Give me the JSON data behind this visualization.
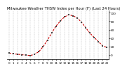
{
  "title": "Milwaukee Weather THSW Index per Hour (F) (Last 24 Hours)",
  "hours": [
    0,
    1,
    2,
    3,
    4,
    5,
    6,
    7,
    8,
    9,
    10,
    11,
    12,
    13,
    14,
    15,
    16,
    17,
    18,
    19,
    20,
    21,
    22,
    23
  ],
  "values": [
    5,
    3,
    2,
    1,
    0,
    -1,
    2,
    8,
    20,
    35,
    52,
    68,
    80,
    90,
    95,
    93,
    88,
    78,
    65,
    52,
    42,
    32,
    22,
    18
  ],
  "line_color": "#cc0000",
  "marker_color": "#444444",
  "bg_color": "#ffffff",
  "grid_color": "#999999",
  "title_color": "#000000",
  "title_fontsize": 3.8,
  "ylim": [
    -10,
    105
  ],
  "xlim": [
    -0.5,
    23.5
  ],
  "ytick_vals": [
    0,
    20,
    40,
    60,
    80,
    100
  ],
  "ytick_labels": [
    "0",
    "20",
    "40",
    "60",
    "80",
    "100"
  ],
  "xtick_labels": [
    "0",
    "1",
    "2",
    "3",
    "4",
    "5",
    "6",
    "7",
    "8",
    "9",
    "10",
    "11",
    "12",
    "13",
    "14",
    "15",
    "16",
    "17",
    "18",
    "19",
    "20",
    "21",
    "22",
    "23"
  ],
  "tick_fontsize": 3.0,
  "line_width": 0.8,
  "marker_size": 1.8
}
